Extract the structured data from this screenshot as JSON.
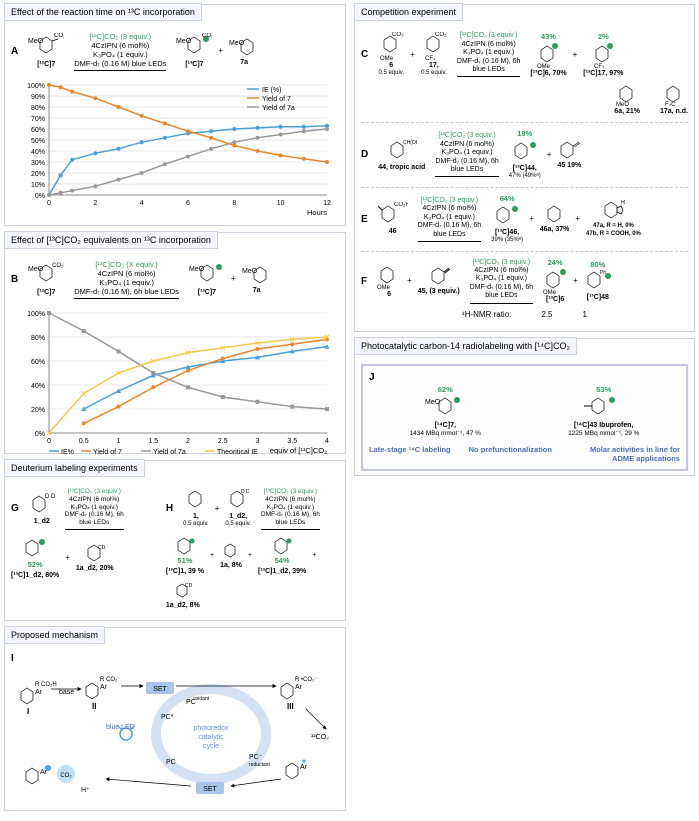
{
  "panelA": {
    "title": "Effect of the reaction time on ¹³C incorporation",
    "label": "A",
    "cond_line1": "[¹³C]CO₂ (3 equiv.)",
    "cond_line2": "4CzIPN (6 mol%)",
    "cond_line3": "K₃PO₄ (1 equiv.)",
    "cond_line4": "DMF-d₇ (0.16 M)\nblue LEDs",
    "sm": "[¹²C]7",
    "p1": "[¹³C]7",
    "p2": "7a",
    "xlabel": "Hours",
    "ylim": [
      0,
      100
    ],
    "ytick_step": 10,
    "xlim": [
      0,
      12
    ],
    "xtick_step": 2,
    "series": {
      "IE": {
        "color": "#4a9fd8",
        "label": "IE (%)",
        "x": [
          0,
          0.5,
          1,
          2,
          3,
          4,
          5,
          6,
          7,
          8,
          9,
          10,
          11,
          12
        ],
        "y": [
          0,
          18,
          32,
          38,
          42,
          48,
          52,
          56,
          58,
          60,
          61,
          62,
          62,
          63
        ]
      },
      "Yield7": {
        "color": "#e8862e",
        "label": "Yield of 7",
        "x": [
          0,
          0.5,
          1,
          2,
          3,
          4,
          5,
          6,
          7,
          8,
          9,
          10,
          11,
          12
        ],
        "y": [
          100,
          98,
          94,
          88,
          80,
          72,
          65,
          58,
          52,
          45,
          40,
          36,
          33,
          30
        ]
      },
      "Yield7a": {
        "color": "#999999",
        "label": "Yield of 7a",
        "x": [
          0,
          0.5,
          1,
          2,
          3,
          4,
          5,
          6,
          7,
          8,
          9,
          10,
          11,
          12
        ],
        "y": [
          0,
          2,
          4,
          8,
          14,
          20,
          28,
          35,
          42,
          48,
          52,
          55,
          58,
          60
        ]
      }
    },
    "legend_pos": "top-right",
    "grid_color": "#e8e8e8",
    "bg": "#ffffff"
  },
  "panelB": {
    "title": "Effect of [¹³C]CO₂ equivalents on ¹³C incorporation",
    "label": "B",
    "cond_line1": "[¹³C]CO₂ (X equiv.)",
    "cond_line2": "4CzIPN (6 mol%)",
    "cond_line3": "K₃PO₄ (1 equiv.)",
    "cond_line4": "DMF-d₇ (0.16 M), 6h\nblue LEDs",
    "sm": "[¹²C]7",
    "p1": "[¹³C]7",
    "p2": "7a",
    "xlabel": "equiv of [¹³C]CO₂",
    "ylim": [
      0,
      100
    ],
    "ytick_step": 20,
    "xlim": [
      0,
      4
    ],
    "xtick_step": 0.5,
    "series": {
      "IE": {
        "color": "#4a9fd8",
        "marker": "triangle",
        "label": "IE%",
        "x": [
          0.5,
          1,
          1.5,
          2,
          2.5,
          3,
          3.5,
          4
        ],
        "y": [
          20,
          35,
          48,
          55,
          60,
          63,
          68,
          72
        ]
      },
      "Yield7": {
        "color": "#e8862e",
        "marker": "circle",
        "label": "Yield of 7",
        "x": [
          0.5,
          1,
          1.5,
          2,
          2.5,
          3,
          3.5,
          4
        ],
        "y": [
          8,
          22,
          38,
          52,
          62,
          70,
          74,
          78
        ]
      },
      "Yield7a": {
        "color": "#999999",
        "marker": "square",
        "label": "Yield of 7a",
        "x": [
          0,
          0.5,
          1,
          1.5,
          2,
          2.5,
          3,
          3.5,
          4
        ],
        "y": [
          100,
          85,
          68,
          50,
          38,
          30,
          26,
          22,
          20
        ]
      },
      "TheoIE": {
        "color": "#f2c94c",
        "marker": "x",
        "label": "Theoritical IE",
        "x": [
          0,
          0.5,
          1,
          1.5,
          2,
          2.5,
          3,
          3.5,
          4
        ],
        "y": [
          0,
          33,
          50,
          60,
          67,
          71,
          75,
          78,
          80
        ]
      }
    },
    "grid_color": "#e8e8e8",
    "bg": "#ffffff"
  },
  "comp": {
    "title": "Competition experiment",
    "C": {
      "label": "C",
      "sm1": "6",
      "sm1_sub": "0.5 equiv.",
      "sm2": "17,",
      "sm2_sub": "0.5 equiv.",
      "cond": [
        "[¹³C]CO₂ (3 equiv.)",
        "4CzIPN (6 mol%)",
        "K₃PO₄ (1 equiv.)",
        "DMF-d₇ (0.16 M), 6h",
        "blue LEDs"
      ],
      "p1": "[¹³C]6, 70%",
      "p1_pct": "43%",
      "p2": "[¹³C]17, 97%",
      "p2_pct": "2%",
      "bp1": "6a, 21%",
      "bp2": "17a, n.d."
    },
    "D": {
      "label": "D",
      "sm": "44, tropic acid",
      "cond": [
        "[¹³C]CO₂ (3 equiv.)",
        "4CzIPN (6 mol%)",
        "K₃PO₄ (1 equiv.)",
        "DMF-d₇ (0.16 M), 6h",
        "blue LEDs"
      ],
      "p1": "[¹³C]44,",
      "p1_sub": "47% (49%ᵃ)",
      "p1_pct": "18%",
      "p2": "45 19%"
    },
    "E": {
      "label": "E",
      "sm": "46",
      "cond": [
        "[¹³C]CO₂ (3 equiv.)",
        "4CzIPN (6 mol%)",
        "K₃PO₄ (1 equiv.)",
        "DMF-d₇ (0.16 M), 6h",
        "blue LEDs"
      ],
      "p1": "[¹³C]46,",
      "p1_sub": "39% (35%ᵃ)",
      "p1_pct": "64%",
      "p2": "46a, 37%",
      "p3": "47a, R = H, 0%",
      "p4": "47b, R = COOH, 0%"
    },
    "F": {
      "label": "F",
      "sm1": "6",
      "sm2": "45, (3 equiv.)",
      "cond": [
        "[¹³C]CO₂ (3 equiv.)",
        "4CzIPN (6 mol%)",
        "K₃PO₄ (1 equiv.)",
        "DMF-d₇ (0.16 M), 6h",
        "blue LEDs"
      ],
      "p1": "[¹³C]6",
      "p1_pct": "24%",
      "p2": "[¹³C]48",
      "p2_pct": "80%",
      "nmr_label": "¹H-NMR ratio:",
      "nmr1": "2.5",
      "nmr2": "1"
    }
  },
  "deut": {
    "title": "Deuterium labeling experiments",
    "G": {
      "label": "G",
      "sm": "1_d2",
      "cond": [
        "[¹³C]CO₂ (3 equiv.)",
        "4CzIPN (6 mol%)",
        "K₃PO₄ (1 equiv.)",
        "DMF-d₇ (0.16 M), 6h",
        "blue LEDs"
      ],
      "p1": "[¹³C]1_d2, 80%",
      "p1_pct": "52%",
      "p2": "1a_d2, 20%"
    },
    "H": {
      "label": "H",
      "sm1": "1,",
      "sm1_sub": "0.5 equiv.",
      "sm2": "1_d2,",
      "sm2_sub": "0.5 equiv.",
      "cond": [
        "[¹³C]CO₂ (3 equiv.)",
        "4CzIPN (6 mol%)",
        "K₃PO₄ (1 equiv.)",
        "DMF-d₇ (0.16 M), 6h",
        "blue LEDs"
      ],
      "p1": "[¹³C]1, 39 %",
      "p1_pct": "51%",
      "p2": "1a, 8%",
      "p3": "[¹³C]1_d2, 39%",
      "p3_pct": "54%",
      "p4": "1a_d2, 8%"
    }
  },
  "mech": {
    "title": "Proposed mechanism",
    "label": "I",
    "species": {
      "I": "I",
      "II": "II",
      "III": "III"
    },
    "steps": [
      "base",
      "SET",
      "SET"
    ],
    "center": "photoredox catalytic cycle",
    "light": "blue LED",
    "release": "¹²CO₂",
    "co2_in": "CO₂",
    "pc_ox": "PC oxidant",
    "pc_red": "PC⁻ reductant",
    "pc": "PC",
    "pc_star": "PC*"
  },
  "radio": {
    "title": "Photocatalytic carbon-14 radiolabeling with  [¹⁴C]CO₂",
    "label": "J",
    "p1": "[¹⁴C]7,",
    "p1_sub": "1434 MBq mmol⁻¹, 47 %",
    "p1_pct": "62%",
    "p2": "[¹⁴C]43 Ibuprofen,",
    "p2_sub": "1225 MBq mmol⁻¹, 29 %",
    "p2_pct": "53%",
    "tags": [
      "Late-stage ¹⁴C labeling",
      "No prefunctionalization",
      "Molar activities in line for ADME applications"
    ]
  },
  "colors": {
    "green": "#2a9d5f",
    "blue_series": "#4a9fd8",
    "orange_series": "#e8862e",
    "gray_series": "#999999",
    "yellow_series": "#f2c94c",
    "panel_border": "#d0d0e0",
    "mech_blue": "#aac4e8",
    "text_blue": "#4a6fb5"
  }
}
